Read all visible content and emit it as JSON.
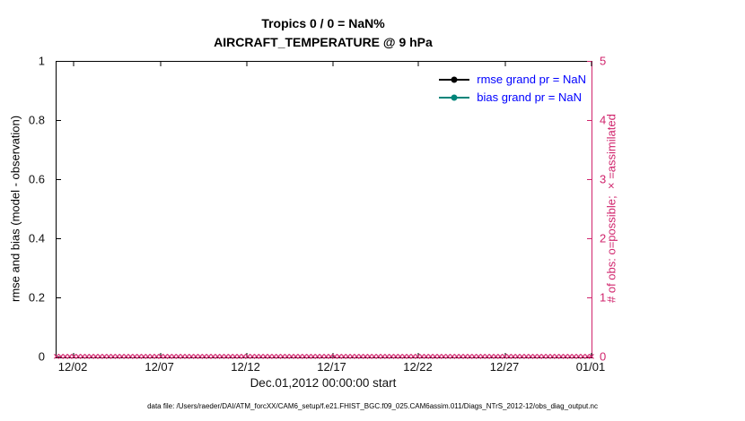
{
  "title": {
    "line1": "Tropics 0 / 0 = NaN%",
    "line2": "AIRCRAFT_TEMPERATURE @ 9 hPa"
  },
  "legend": {
    "text_color": "#0000ff",
    "items": [
      {
        "label": "rmse grand pr = NaN",
        "color": "#000000",
        "marker": "filled-circle"
      },
      {
        "label": "bias grand pr = NaN",
        "color": "#00857a",
        "marker": "filled-circle"
      }
    ]
  },
  "axes": {
    "left": {
      "label": "rmse and bias (model - observation)",
      "ticks": [
        {
          "label": "0",
          "pos": 0
        },
        {
          "label": "0.2",
          "pos": 20
        },
        {
          "label": "0.4",
          "pos": 40
        },
        {
          "label": "0.6",
          "pos": 60
        },
        {
          "label": "0.8",
          "pos": 80
        },
        {
          "label": "1",
          "pos": 100
        }
      ]
    },
    "right": {
      "label": "# of obs: o=possible; ×=assimilated",
      "color": "#d0246c",
      "ticks": [
        {
          "label": "0",
          "pos": 0
        },
        {
          "label": "1",
          "pos": 20
        },
        {
          "label": "2",
          "pos": 40
        },
        {
          "label": "3",
          "pos": 60
        },
        {
          "label": "4",
          "pos": 80
        },
        {
          "label": "5",
          "pos": 100
        }
      ]
    },
    "x": {
      "label": "Dec.01,2012 00:00:00 start",
      "ticks": [
        {
          "label": "12/02",
          "pos": 3.2
        },
        {
          "label": "12/07",
          "pos": 19.4
        },
        {
          "label": "12/12",
          "pos": 35.5
        },
        {
          "label": "12/17",
          "pos": 51.6
        },
        {
          "label": "12/22",
          "pos": 67.7
        },
        {
          "label": "12/27",
          "pos": 83.9
        },
        {
          "label": "01/01",
          "pos": 100
        }
      ]
    }
  },
  "footer": {
    "text": "data file: /Users/raeder/DAI/ATM_forcXX/CAM6_setup/f.e21.FHIST_BGC.f09_025.CAM6assim.011/Diags_NTrS_2012-12/obs_diag_output.nc"
  },
  "chart_data": {
    "type": "line",
    "title": "Tropics 0 / 0 = NaN%",
    "subtitle": "AIRCRAFT_TEMPERATURE @ 9 hPa",
    "xlabel": "Dec.01,2012 00:00:00 start",
    "x_tick_labels": [
      "12/02",
      "12/07",
      "12/12",
      "12/17",
      "12/22",
      "12/27",
      "01/01"
    ],
    "x_range": [
      "2012-12-01 00:00:00",
      "2013-01-01 00:00:00"
    ],
    "y_left": {
      "label": "rmse and bias (model - observation)",
      "range": [
        0,
        1
      ],
      "tick_labels": [
        "0",
        "0.2",
        "0.4",
        "0.6",
        "0.8",
        "1"
      ]
    },
    "y_right": {
      "label": "# of obs: o=possible; ×=assimilated",
      "range": [
        0,
        5
      ],
      "tick_labels": [
        "0",
        "1",
        "2",
        "3",
        "4",
        "5"
      ]
    },
    "grid": false,
    "legend_position": "top-right",
    "series": [
      {
        "name": "rmse",
        "grand_pr": "NaN",
        "color": "#000000",
        "marker": "filled-circle",
        "values": [],
        "note": "all NaN, nothing plotted"
      },
      {
        "name": "bias",
        "grand_pr": "NaN",
        "color": "#00857a",
        "marker": "filled-circle",
        "values": [],
        "note": "all NaN, nothing plotted"
      },
      {
        "name": "obs possible",
        "marker": "o",
        "color": "#d0246c",
        "constant_value": 0
      },
      {
        "name": "obs assimilated",
        "marker": "×",
        "color": "#d0246c",
        "constant_value": 0
      }
    ],
    "obs_marker_glyph": "×",
    "obs_marker_count": 124
  }
}
